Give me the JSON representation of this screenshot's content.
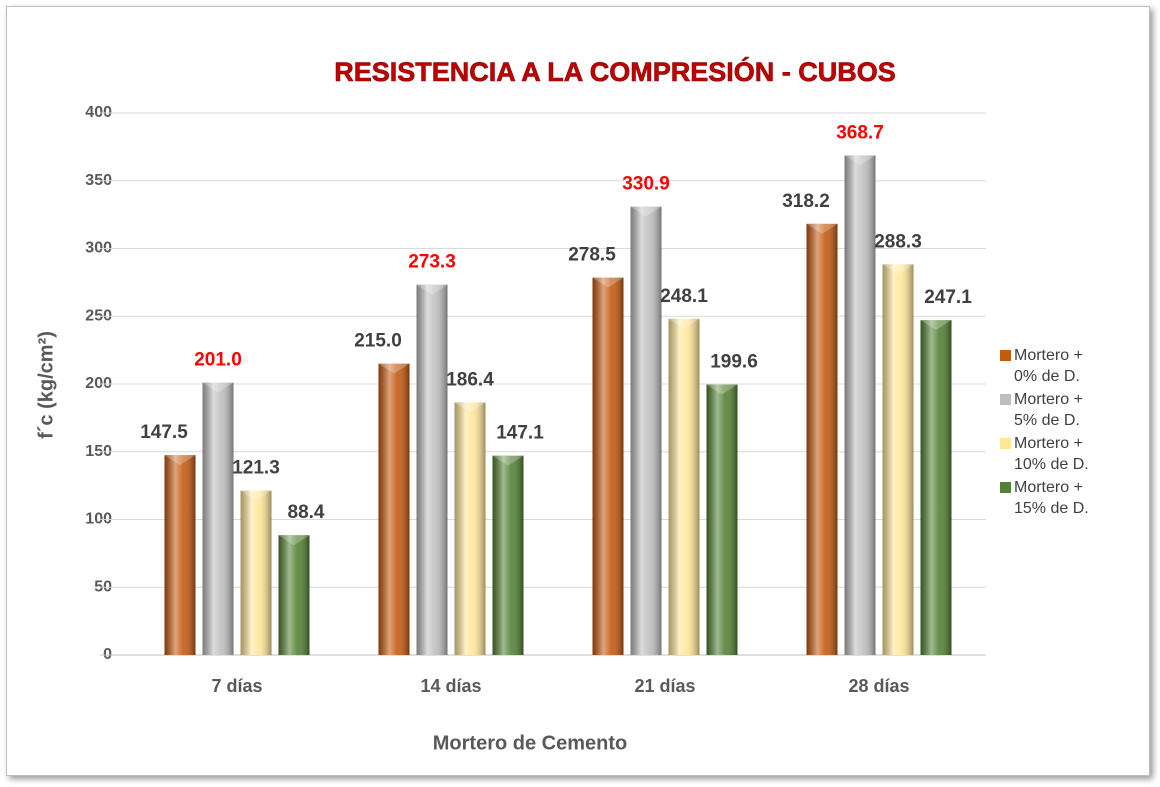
{
  "chart_data": {
    "type": "bar",
    "title": "RESISTENCIA A LA COMPRESIÓN - CUBOS",
    "x_label": "Mortero de Cemento",
    "y_label": "f´c (kg/cm²)",
    "categories": [
      "7 días",
      "14 días",
      "21 días",
      "28 días"
    ],
    "series": [
      {
        "name": "Mortero + 0% de D.",
        "color": "#c55a11",
        "label_color": "#404040",
        "values": [
          147.5,
          215,
          278.5,
          318.2
        ],
        "value_labels": [
          "147.5",
          "215.0",
          "278.5",
          "318.2"
        ]
      },
      {
        "name": "Mortero + 5% de D.",
        "color": "#bfbfbf",
        "label_color": "#ff0000",
        "values": [
          201,
          273.3,
          330.9,
          368.7
        ],
        "value_labels": [
          "201.0",
          "273.3",
          "330.9",
          "368.7"
        ]
      },
      {
        "name": "Mortero + 10% de D.",
        "color": "#ffe699",
        "label_color": "#404040",
        "values": [
          121.3,
          186.4,
          248.1,
          288.3
        ],
        "value_labels": [
          "121.3",
          "186.4",
          "248.1",
          "288.3"
        ]
      },
      {
        "name": "Mortero + 15% de D.",
        "color": "#548235",
        "label_color": "#404040",
        "values": [
          88.4,
          147.1,
          199.6,
          247.1
        ],
        "value_labels": [
          "88.4",
          "147.1",
          "199.6",
          "247.1"
        ]
      }
    ],
    "ylim": [
      0,
      400
    ],
    "yticks": [
      0,
      50,
      100,
      150,
      200,
      250,
      300,
      350,
      400
    ],
    "grid": true,
    "legend": "right"
  }
}
